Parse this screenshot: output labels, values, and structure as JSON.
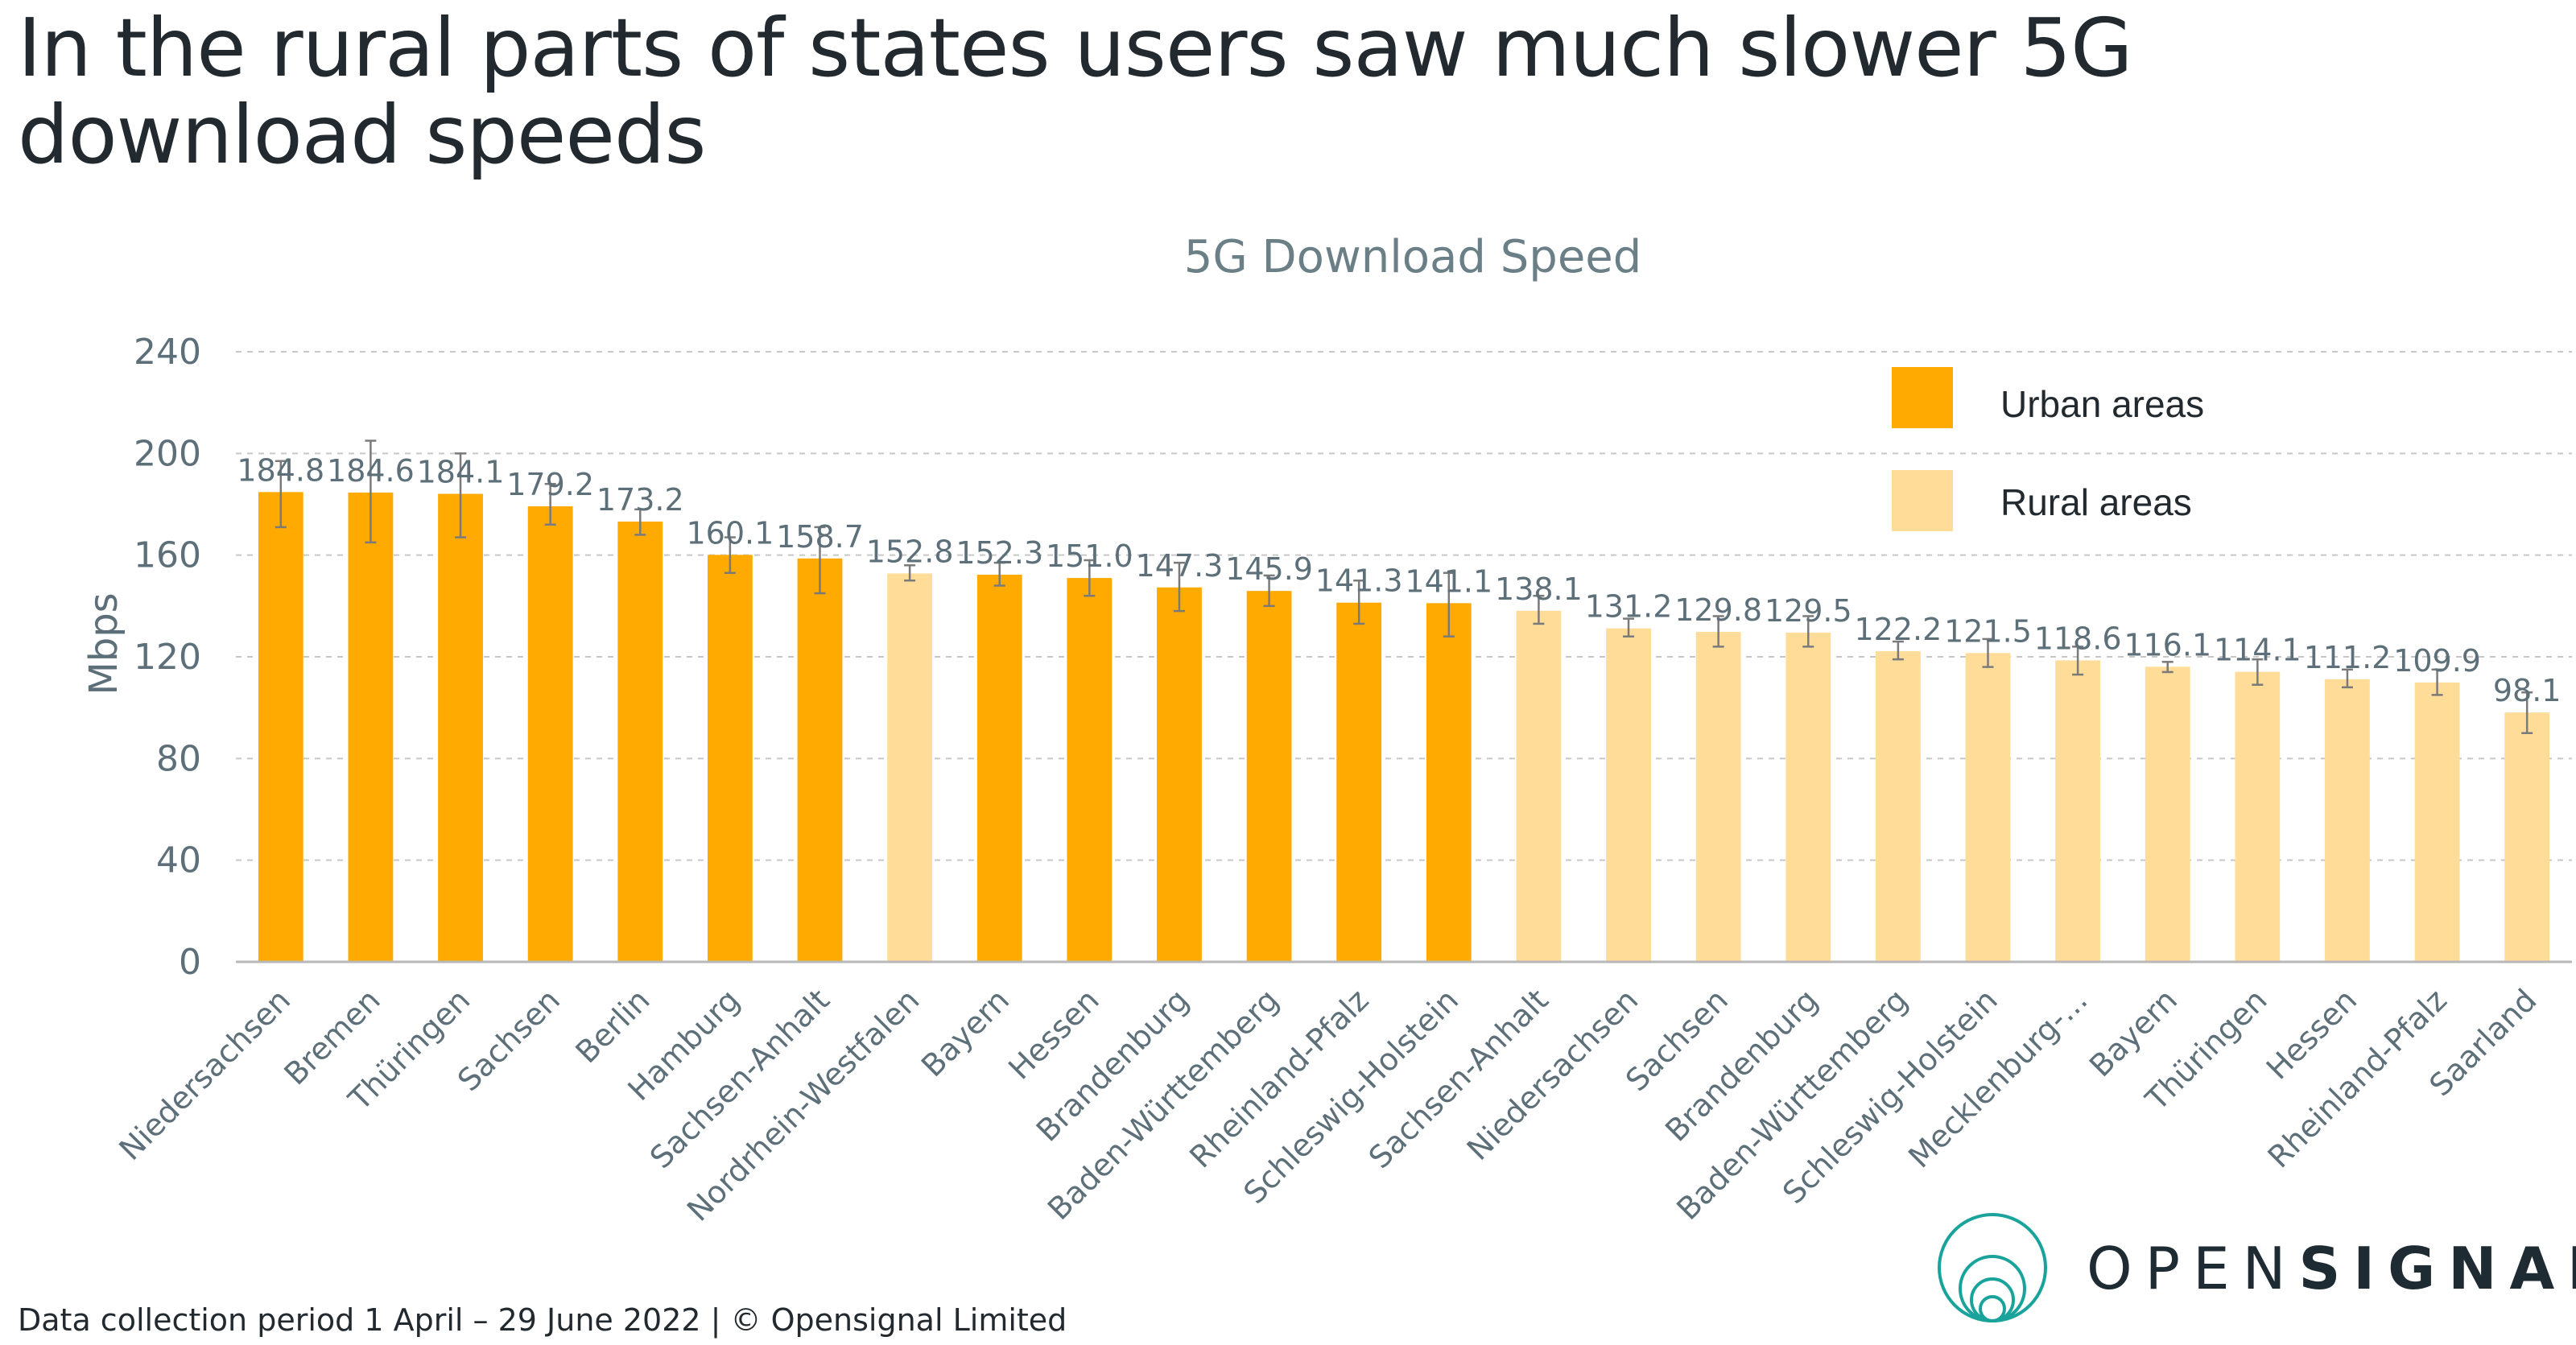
{
  "headline": "In the rural parts of states users saw much slower 5G download speeds",
  "footer": "Data collection period 1 April – 29 June 2022  |  © Opensignal Limited",
  "brand": {
    "prefix": "OPEN",
    "suffix": "SIGNAL",
    "logo_icon": "concentric-circles-icon",
    "logo_color": "#1aa39a"
  },
  "colors": {
    "urban": "#ffaa00",
    "rural": "#ffdd99",
    "grid": "#c8c8c8",
    "axis": "#b8b8b8",
    "text": "#5d7079"
  },
  "chart_data": {
    "type": "bar",
    "title": "5G Download Speed",
    "ylabel": "Mbps",
    "xlabel": "",
    "ylim": [
      0,
      240
    ],
    "yticks": [
      0,
      40,
      80,
      120,
      160,
      200,
      240
    ],
    "grid": true,
    "legend_position": "top-right",
    "series": [
      {
        "name": "Urban areas",
        "key": "urban"
      },
      {
        "name": "Rural areas",
        "key": "rural"
      }
    ],
    "categories": [
      "Niedersachsen",
      "Bremen",
      "Thüringen",
      "Sachsen",
      "Berlin",
      "Hamburg",
      "Sachsen-Anhalt",
      "Nordrhein-Westfalen",
      "Bayern",
      "Hessen",
      "Brandenburg",
      "Baden-Württemberg",
      "Rheinland-Pfalz",
      "Schleswig-Holstein",
      "Sachsen-Anhalt",
      "Niedersachsen",
      "Sachsen",
      "Brandenburg",
      "Baden-Württemberg",
      "Schleswig-Holstein",
      "Mecklenburg-...",
      "Bayern",
      "Thüringen",
      "Hessen",
      "Rheinland-Pfalz",
      "Saarland"
    ],
    "values": [
      184.8,
      184.6,
      184.1,
      179.2,
      173.2,
      160.1,
      158.7,
      152.8,
      152.3,
      151.0,
      147.3,
      145.9,
      141.3,
      141.1,
      138.1,
      131.2,
      129.8,
      129.5,
      122.2,
      121.5,
      118.6,
      116.1,
      114.1,
      111.2,
      109.9,
      98.1
    ],
    "labels": [
      "184.8",
      "184.6",
      "184.1",
      "179.2",
      "173.2",
      "160.1",
      "158.7",
      "152.8",
      "152.3",
      "151.0",
      "147.3",
      "145.9",
      "141.3",
      "141.1",
      "138.1",
      "131.2",
      "129.8",
      "129.5",
      "122.2",
      "121.5",
      "118.6",
      "116.1",
      "114.1",
      "111.2",
      "109.9",
      "98.1"
    ],
    "area_type": [
      "urban",
      "urban",
      "urban",
      "urban",
      "urban",
      "urban",
      "urban",
      "rural",
      "urban",
      "urban",
      "urban",
      "urban",
      "urban",
      "urban",
      "rural",
      "rural",
      "rural",
      "rural",
      "rural",
      "rural",
      "rural",
      "rural",
      "rural",
      "rural",
      "rural",
      "rural"
    ],
    "ci_low": [
      171,
      165,
      167,
      172,
      168,
      153,
      145,
      150,
      148,
      144,
      138,
      140,
      133,
      128,
      133,
      128,
      124,
      124,
      119,
      116,
      113,
      114,
      109,
      108,
      105,
      90
    ],
    "ci_high": [
      197,
      205,
      200,
      188,
      178,
      167,
      171,
      156,
      157,
      158,
      157,
      152,
      150,
      153,
      144,
      135,
      136,
      136,
      126,
      127,
      124,
      118,
      119,
      115,
      115,
      106
    ]
  }
}
